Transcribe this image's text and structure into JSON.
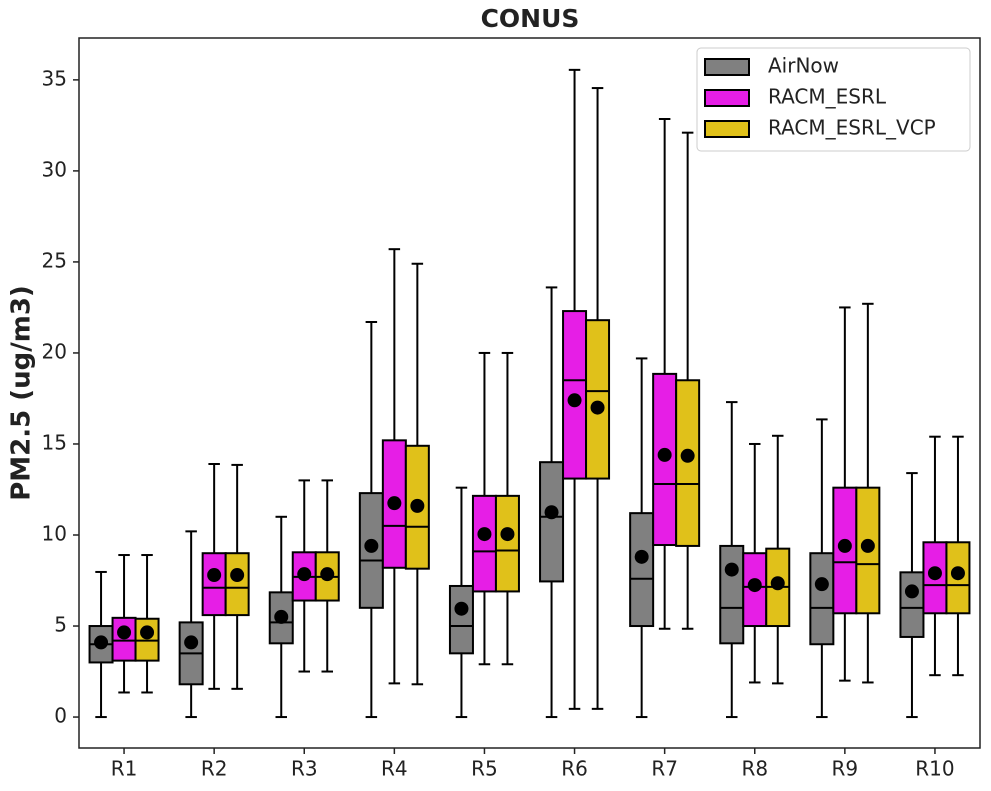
{
  "chart_data": {
    "type": "box",
    "title": "CONUS",
    "y_label": "PM2.5 (ug/m3)",
    "categories": [
      "R1",
      "R2",
      "R3",
      "R4",
      "R5",
      "R6",
      "R7",
      "R8",
      "R9",
      "R10"
    ],
    "ylim": [
      -1.7,
      37.3
    ],
    "yticks": [
      0,
      5,
      10,
      15,
      20,
      25,
      30,
      35
    ],
    "legend_position": "upper right",
    "series": [
      {
        "name": "AirNow",
        "color": "#808080",
        "whislo": [
          0,
          0,
          0,
          0,
          0,
          0,
          0,
          0,
          0,
          0
        ],
        "q1": [
          3.0,
          1.8,
          4.05,
          6.0,
          3.5,
          7.45,
          5.0,
          4.05,
          4.0,
          4.4
        ],
        "med": [
          4.0,
          3.5,
          5.2,
          8.6,
          5.0,
          11.0,
          7.6,
          6.0,
          6.0,
          6.0
        ],
        "q3": [
          5.0,
          5.2,
          6.85,
          12.3,
          7.2,
          14.0,
          11.2,
          9.4,
          9.0,
          7.95
        ],
        "whishi": [
          7.97,
          10.2,
          11.0,
          21.7,
          12.6,
          23.6,
          19.7,
          17.3,
          16.35,
          13.4
        ],
        "mean": [
          4.1,
          4.1,
          5.5,
          9.4,
          5.95,
          11.25,
          8.8,
          8.1,
          7.3,
          6.9
        ]
      },
      {
        "name": "RACM_ESRL",
        "color": "#e61ee6",
        "whislo": [
          1.35,
          1.55,
          2.5,
          1.85,
          2.9,
          0.45,
          4.85,
          1.9,
          2.0,
          2.3
        ],
        "q1": [
          3.1,
          5.6,
          6.4,
          8.2,
          6.9,
          13.1,
          9.45,
          5.0,
          5.7,
          5.7
        ],
        "med": [
          4.2,
          7.1,
          7.7,
          10.5,
          9.1,
          18.5,
          12.8,
          7.15,
          8.5,
          7.25
        ],
        "q3": [
          5.45,
          9.0,
          9.05,
          15.2,
          12.15,
          22.3,
          18.85,
          9.0,
          12.6,
          9.6
        ],
        "whishi": [
          8.9,
          13.9,
          13.0,
          25.7,
          20.0,
          35.55,
          32.85,
          15.0,
          22.5,
          15.4
        ],
        "mean": [
          4.65,
          7.8,
          7.85,
          11.75,
          10.05,
          17.4,
          14.4,
          7.25,
          9.4,
          7.9
        ]
      },
      {
        "name": "RACM_ESRL_VCP",
        "color": "#e0c11a",
        "whislo": [
          1.35,
          1.55,
          2.5,
          1.8,
          2.9,
          0.45,
          4.85,
          1.85,
          1.9,
          2.3
        ],
        "q1": [
          3.1,
          5.6,
          6.4,
          8.15,
          6.9,
          13.1,
          9.4,
          5.0,
          5.7,
          5.7
        ],
        "med": [
          4.2,
          7.1,
          7.7,
          10.45,
          9.15,
          17.9,
          12.8,
          7.15,
          8.4,
          7.25
        ],
        "q3": [
          5.4,
          9.0,
          9.05,
          14.9,
          12.15,
          21.8,
          18.5,
          9.25,
          12.6,
          9.6
        ],
        "whishi": [
          8.9,
          13.85,
          13.0,
          24.9,
          20.0,
          34.55,
          32.1,
          15.45,
          22.7,
          15.4
        ],
        "mean": [
          4.65,
          7.8,
          7.85,
          11.6,
          10.05,
          17.0,
          14.35,
          7.35,
          9.4,
          7.9
        ]
      }
    ]
  }
}
